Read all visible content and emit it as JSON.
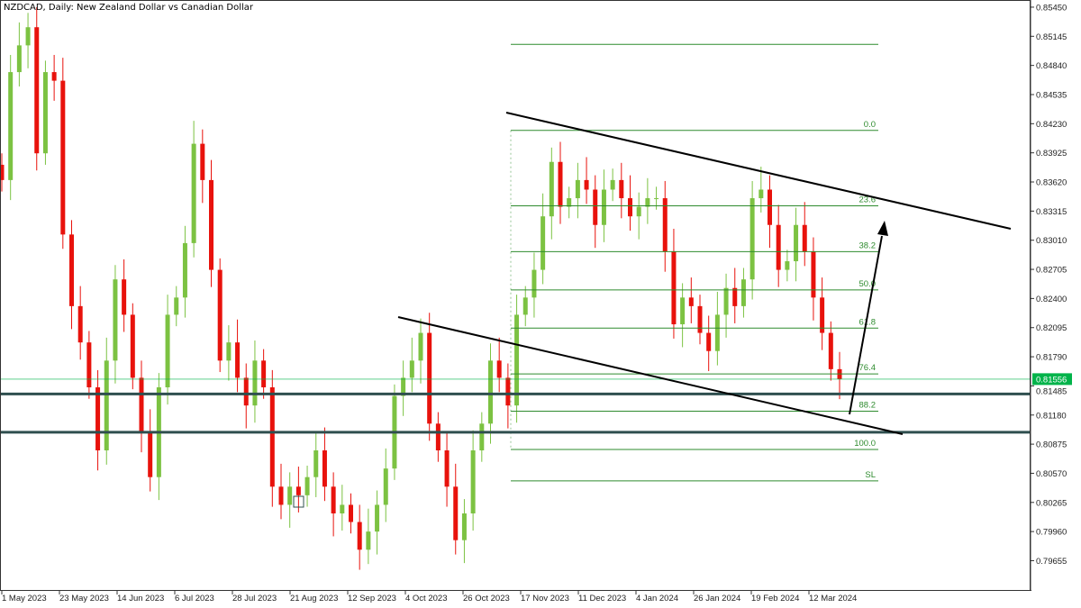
{
  "header": {
    "title": "NZDCAD, Daily:  New Zealand Dollar vs Canadian Dollar"
  },
  "chart_data": {
    "type": "candlestick",
    "symbol": "NZDCAD",
    "timeframe": "Daily",
    "ylim": [
      0.794,
      0.856
    ],
    "y_ticks": [
      "0.85450",
      "0.85145",
      "0.84840",
      "0.84535",
      "0.84230",
      "0.83925",
      "0.83620",
      "0.83315",
      "0.83010",
      "0.82705",
      "0.82400",
      "0.82095",
      "0.81790",
      "0.81485",
      "0.81180",
      "0.80875",
      "0.80570",
      "0.80265",
      "0.79960",
      "0.79655"
    ],
    "x_ticks": [
      "1 May 2023",
      "23 May 2023",
      "14 Jun 2023",
      "6 Jul 2023",
      "28 Jul 2023",
      "21 Aug 2023",
      "12 Sep 2023",
      "4 Oct 2023",
      "26 Oct 2023",
      "17 Nov 2023",
      "11 Dec 2023",
      "4 Jan 2024",
      "26 Jan 2024",
      "19 Feb 2024",
      "12 Mar 2024"
    ],
    "first_open": 0.838,
    "close": [
      0.8364,
      0.8477,
      0.8505,
      0.8524,
      0.8392,
      0.8477,
      0.8468,
      0.8307,
      0.8232,
      0.8194,
      0.8147,
      0.8081,
      0.8175,
      0.826,
      0.8223,
      0.8157,
      0.81,
      0.8053,
      0.8147,
      0.8223,
      0.8241,
      0.8298,
      0.8402,
      0.8364,
      0.827,
      0.8175,
      0.8194,
      0.8157,
      0.8128,
      0.8175,
      0.8147,
      0.8043,
      0.8024,
      0.8043,
      0.8034,
      0.8053,
      0.8081,
      0.8043,
      0.8015,
      0.8024,
      0.8006,
      0.7977,
      0.7996,
      0.8024,
      0.8062,
      0.8138,
      0.8157,
      0.8175,
      0.8204,
      0.8109,
      0.8081,
      0.8043,
      0.7987,
      0.8015,
      0.8081,
      0.8109,
      0.8175,
      0.8157,
      0.8128,
      0.8223,
      0.8241,
      0.827,
      0.8326,
      0.8383,
      0.8336,
      0.8345,
      0.8364,
      0.8354,
      0.8317,
      0.8354,
      0.8364,
      0.8345,
      0.8326,
      0.8336,
      0.8345,
      0.8345,
      0.8289,
      0.8213,
      0.8241,
      0.8232,
      0.8204,
      0.8185,
      0.8223,
      0.8251,
      0.8232,
      0.826,
      0.8345,
      0.8354,
      0.8317,
      0.827,
      0.8279,
      0.8317,
      0.8289,
      0.8241,
      0.8204,
      0.8166,
      0.81556
    ],
    "current_price": {
      "label": "0.81556",
      "value": 0.81556
    },
    "fibonacci": [
      {
        "label": "",
        "value": 0.8506
      },
      {
        "label": "0.0",
        "value": 0.8416
      },
      {
        "label": "23.6",
        "value": 0.8337
      },
      {
        "label": "38.2",
        "value": 0.8289
      },
      {
        "label": "50.0",
        "value": 0.8249
      },
      {
        "label": "61.8",
        "value": 0.8209
      },
      {
        "label": "76.4",
        "value": 0.8161
      },
      {
        "label": "88.2",
        "value": 0.8122
      },
      {
        "label": "100.0",
        "value": 0.8082
      },
      {
        "label": "SL",
        "value": 0.8049
      }
    ],
    "support_levels": [
      0.814,
      0.81
    ],
    "colors": {
      "bull": "#7cc242",
      "bear": "#e8120c",
      "fib": "#2e8b2e",
      "support": "#2f4f4f",
      "price_label": "#00b34a",
      "trendline": "#000000"
    }
  }
}
